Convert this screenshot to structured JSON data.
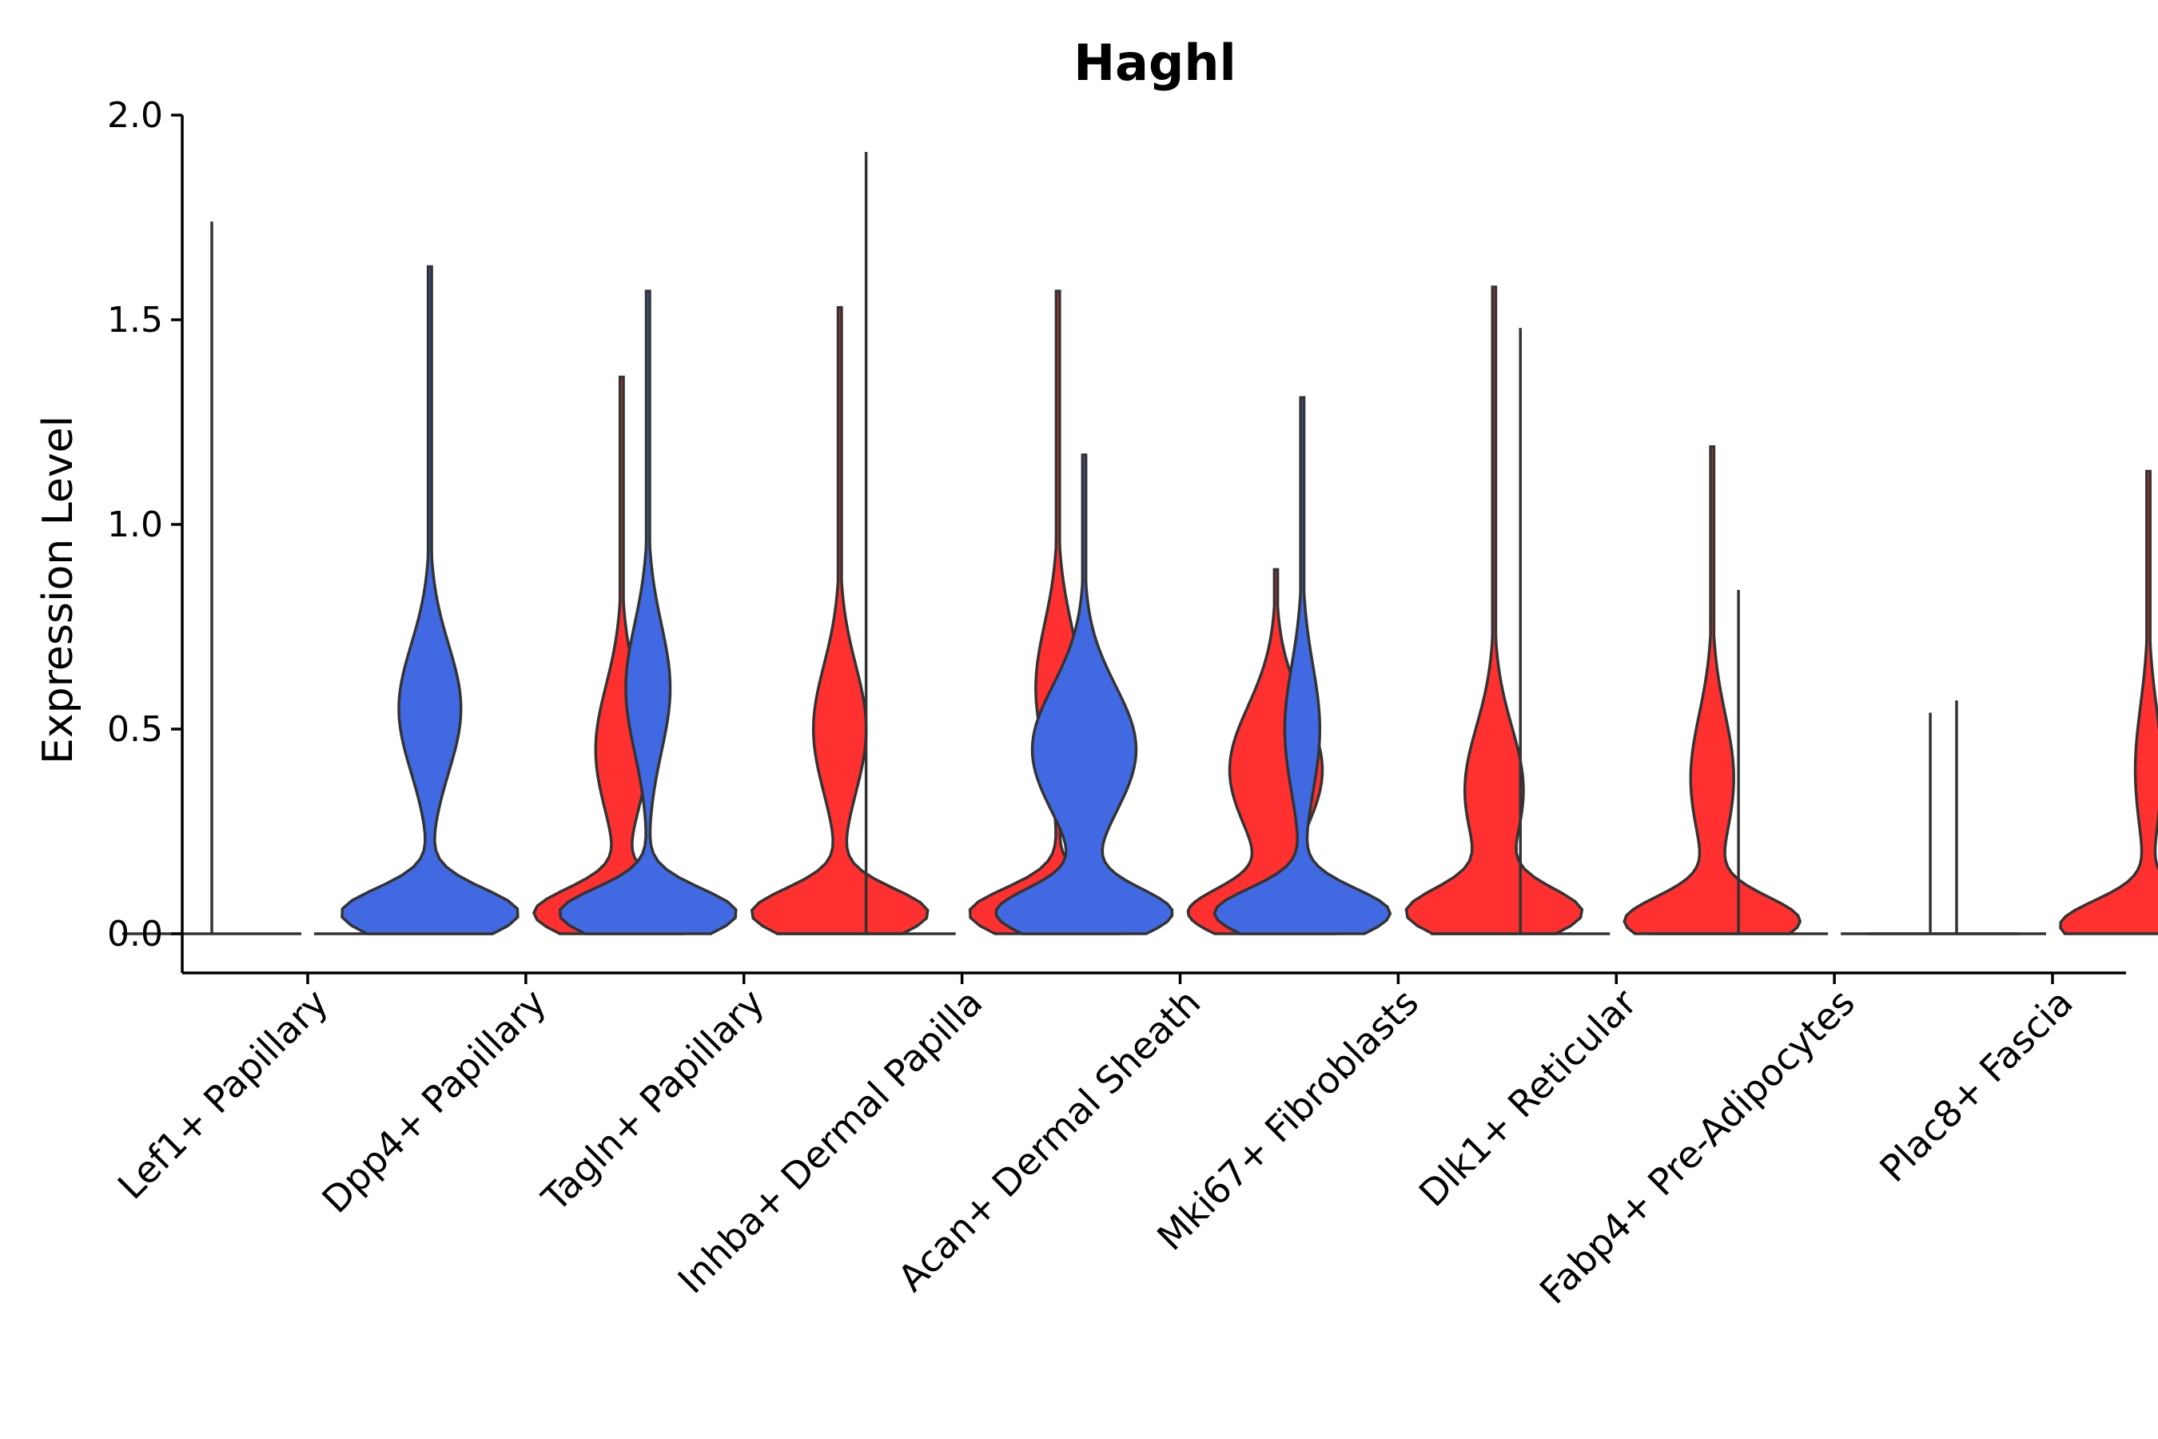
{
  "chart_data": {
    "type": "violin",
    "title": "Haghl",
    "xlabel": "",
    "ylabel": "Expression Level",
    "ylim": [
      -0.1,
      2.0
    ],
    "yticks": [
      "0.0",
      "0.5",
      "1.0",
      "1.5",
      "2.0"
    ],
    "grid": false,
    "legend": "none",
    "colors": {
      "blue": "#4169e1",
      "red": "#ff3030",
      "outline": "#333333"
    },
    "categories": [
      "Lef1+ Papillary",
      "Dpp4+ Papillary",
      "Tagln+ Papillary",
      "Inhba+ Dermal Papilla",
      "Acan+ Dermal Sheath",
      "Mki67+ Fibroblasts",
      "Dlk1+ Reticular",
      "Fabp4+ Pre-Adipocytes",
      "Plac8+ Fascia"
    ],
    "violins": [
      {
        "category": "Lef1+ Papillary",
        "group": "blue",
        "max": 1.74,
        "mode": 0.0,
        "width": 0.0,
        "flat": true
      },
      {
        "category": "Lef1+ Papillary",
        "group": "red",
        "max": 0.0,
        "mode": 0.0,
        "width": 0.0,
        "flat": true
      },
      {
        "category": "Dpp4+ Papillary",
        "group": "blue",
        "max": 1.63,
        "mode": 0.05,
        "width": 1.0,
        "peak2": 0.55,
        "peak2width": 0.35
      },
      {
        "category": "Dpp4+ Papillary",
        "group": "red",
        "max": 1.36,
        "mode": 0.05,
        "width": 1.0,
        "peak2": 0.45,
        "peak2width": 0.3
      },
      {
        "category": "Tagln+ Papillary",
        "group": "blue",
        "max": 1.57,
        "mode": 0.05,
        "width": 1.0,
        "peak2": 0.6,
        "peak2width": 0.25
      },
      {
        "category": "Tagln+ Papillary",
        "group": "red",
        "max": 1.53,
        "mode": 0.05,
        "width": 1.0,
        "peak2": 0.5,
        "peak2width": 0.3
      },
      {
        "category": "Inhba+ Dermal Papilla",
        "group": "blue",
        "max": 1.91,
        "mode": 0.0,
        "width": 0.0,
        "flat": true
      },
      {
        "category": "Inhba+ Dermal Papilla",
        "group": "red",
        "max": 1.57,
        "mode": 0.05,
        "width": 1.0,
        "peak2": 0.6,
        "peak2width": 0.25
      },
      {
        "category": "Acan+ Dermal Sheath",
        "group": "blue",
        "max": 1.17,
        "mode": 0.05,
        "width": 1.0,
        "peak2": 0.45,
        "peak2width": 0.6
      },
      {
        "category": "Acan+ Dermal Sheath",
        "group": "red",
        "max": 0.89,
        "mode": 0.05,
        "width": 1.0,
        "peak2": 0.4,
        "peak2width": 0.55
      },
      {
        "category": "Mki67+ Fibroblasts",
        "group": "blue",
        "max": 1.31,
        "mode": 0.05,
        "width": 1.0,
        "peak2": 0.5,
        "peak2width": 0.2
      },
      {
        "category": "Mki67+ Fibroblasts",
        "group": "red",
        "max": 1.58,
        "mode": 0.05,
        "width": 1.0,
        "peak2": 0.35,
        "peak2width": 0.35
      },
      {
        "category": "Dlk1+ Reticular",
        "group": "blue",
        "max": 1.48,
        "mode": 0.0,
        "width": 0.0,
        "flat": true
      },
      {
        "category": "Dlk1+ Reticular",
        "group": "red",
        "max": 1.19,
        "mode": 0.03,
        "width": 1.0,
        "peak2": 0.38,
        "peak2width": 0.25
      },
      {
        "category": "Fabp4+ Pre-Adipocytes",
        "group": "blue",
        "max": 0.84,
        "mode": 0.0,
        "width": 0.0,
        "flat": true
      },
      {
        "category": "Fabp4+ Pre-Adipocytes",
        "group": "red",
        "max": 0.54,
        "mode": 0.0,
        "width": 0.0,
        "flat": true
      },
      {
        "category": "Plac8+ Fascia",
        "group": "blue",
        "max": 0.57,
        "mode": 0.0,
        "width": 0.0,
        "flat": true
      },
      {
        "category": "Plac8+ Fascia",
        "group": "red",
        "max": 1.13,
        "mode": 0.02,
        "width": 1.0,
        "peak2": 0.4,
        "peak2width": 0.15
      }
    ]
  }
}
